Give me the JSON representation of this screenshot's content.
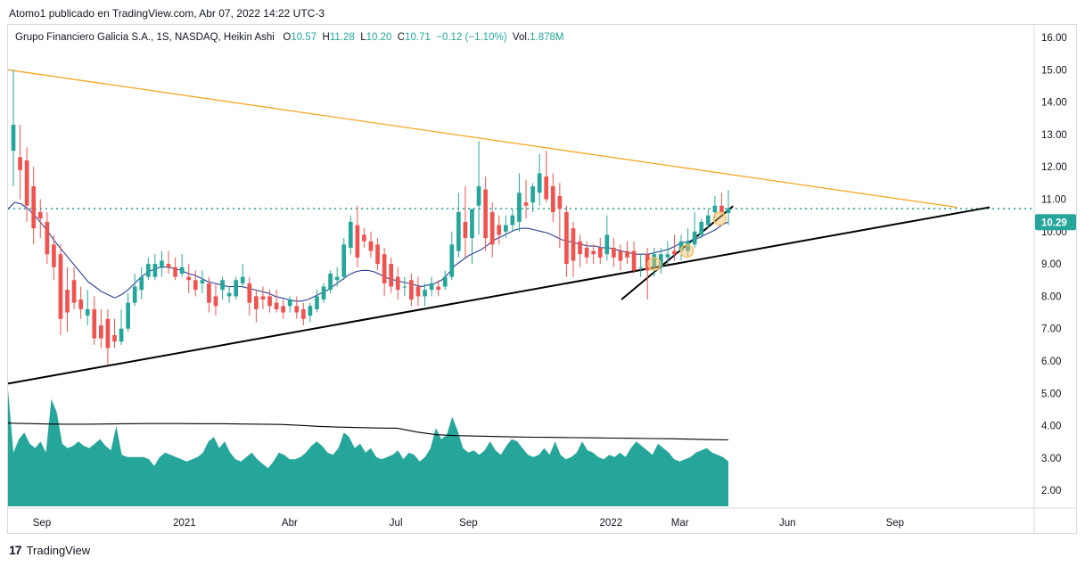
{
  "caption": "Atomo1 publicado en TradingView.com, Abr 07, 2022 14:22 UTC-3",
  "legend": {
    "symbol": "Grupo Financiero Galicia S.A., 1S, NASDAQ, Heikin Ashi",
    "o_label": "O",
    "o_value": "10.57",
    "h_label": "H",
    "h_value": "11.28",
    "l_label": "L",
    "l_value": "10.20",
    "c_label": "C",
    "c_value": "10.71",
    "change": "−0.12 (−1.10%)",
    "vol_label": "Vol.",
    "vol_value": "1.878M"
  },
  "footer": {
    "logo_mark": "17",
    "brand": "TradingView"
  },
  "colors": {
    "up": "#26a69a",
    "down": "#ef5350",
    "ma": "#2a3f8f",
    "resistance": "#f5a623",
    "support": "#000000",
    "dotted": "#26a69a",
    "volume": "#26a69a",
    "vol_ma": "#000000",
    "badge": "#26a69a",
    "marker": "#f5c26b"
  },
  "chart_data": {
    "type": "candlestick",
    "title": "Grupo Financiero Galicia S.A., 1S, NASDAQ, Heikin Ashi",
    "y_axis": {
      "ticks": [
        "16.00",
        "15.00",
        "14.00",
        "13.00",
        "12.00",
        "11.00",
        "10.00",
        "9.00",
        "8.00",
        "7.00",
        "6.00",
        "5.00",
        "4.00",
        "3.00",
        "2.00"
      ],
      "ylim": [
        1.0,
        16.5
      ],
      "scale": "linear",
      "position": "right"
    },
    "x_axis": {
      "ticks": [
        "Sep",
        "2021",
        "Abr",
        "Jul",
        "Sep",
        "2022",
        "Mar",
        "Jun",
        "Sep"
      ],
      "tick_dates": [
        "2020-09-01",
        "2021-01-01",
        "2021-04-01",
        "2021-07-01",
        "2021-09-01",
        "2022-01-01",
        "2022-03-01",
        "2022-06-01",
        "2022-09-01"
      ],
      "range": [
        "2020-08-03",
        "2022-11-21"
      ]
    },
    "last_price": "10.29",
    "current_level": 10.71,
    "candles": [
      {
        "o": 12.5,
        "h": 15.0,
        "l": 11.4,
        "c": 13.3
      },
      {
        "o": 12.3,
        "h": 13.3,
        "l": 11.0,
        "c": 11.9
      },
      {
        "o": 12.2,
        "h": 12.6,
        "l": 10.3,
        "c": 10.8
      },
      {
        "o": 11.4,
        "h": 12.0,
        "l": 9.6,
        "c": 10.1
      },
      {
        "o": 10.6,
        "h": 11.0,
        "l": 9.8,
        "c": 10.4
      },
      {
        "o": 10.3,
        "h": 10.6,
        "l": 9.0,
        "c": 9.3
      },
      {
        "o": 9.6,
        "h": 9.9,
        "l": 8.5,
        "c": 8.9
      },
      {
        "o": 9.3,
        "h": 9.6,
        "l": 6.8,
        "c": 7.3
      },
      {
        "o": 8.2,
        "h": 8.9,
        "l": 6.9,
        "c": 7.5
      },
      {
        "o": 8.5,
        "h": 8.9,
        "l": 7.6,
        "c": 7.8
      },
      {
        "o": 7.9,
        "h": 8.3,
        "l": 7.3,
        "c": 7.6
      },
      {
        "o": 7.4,
        "h": 8.2,
        "l": 7.1,
        "c": 7.6
      },
      {
        "o": 7.6,
        "h": 8.0,
        "l": 6.5,
        "c": 6.7
      },
      {
        "o": 7.1,
        "h": 7.6,
        "l": 6.4,
        "c": 6.7
      },
      {
        "o": 7.3,
        "h": 7.6,
        "l": 5.9,
        "c": 6.4
      },
      {
        "o": 6.8,
        "h": 7.3,
        "l": 6.4,
        "c": 6.6
      },
      {
        "o": 6.6,
        "h": 7.6,
        "l": 6.5,
        "c": 7.0
      },
      {
        "o": 7.0,
        "h": 8.1,
        "l": 6.9,
        "c": 7.8
      },
      {
        "o": 7.8,
        "h": 8.7,
        "l": 7.7,
        "c": 8.3
      },
      {
        "o": 8.2,
        "h": 8.9,
        "l": 7.9,
        "c": 8.6
      },
      {
        "o": 8.6,
        "h": 9.2,
        "l": 8.5,
        "c": 9.0
      },
      {
        "o": 8.6,
        "h": 9.3,
        "l": 8.5,
        "c": 9.0
      },
      {
        "o": 8.9,
        "h": 9.4,
        "l": 8.6,
        "c": 9.1
      },
      {
        "o": 9.0,
        "h": 9.4,
        "l": 8.7,
        "c": 8.9
      },
      {
        "o": 8.9,
        "h": 9.2,
        "l": 8.5,
        "c": 8.6
      },
      {
        "o": 8.7,
        "h": 9.3,
        "l": 8.6,
        "c": 8.9
      },
      {
        "o": 8.6,
        "h": 9.0,
        "l": 8.1,
        "c": 8.5
      },
      {
        "o": 8.5,
        "h": 8.8,
        "l": 8.0,
        "c": 8.2
      },
      {
        "o": 8.4,
        "h": 8.8,
        "l": 8.1,
        "c": 8.5
      },
      {
        "o": 8.4,
        "h": 8.6,
        "l": 7.5,
        "c": 7.8
      },
      {
        "o": 8.0,
        "h": 8.4,
        "l": 7.4,
        "c": 7.7
      },
      {
        "o": 8.2,
        "h": 8.6,
        "l": 7.9,
        "c": 8.5
      },
      {
        "o": 8.0,
        "h": 8.3,
        "l": 7.8,
        "c": 8.1
      },
      {
        "o": 8.0,
        "h": 8.6,
        "l": 7.9,
        "c": 8.5
      },
      {
        "o": 8.4,
        "h": 9.0,
        "l": 8.3,
        "c": 8.6
      },
      {
        "o": 8.4,
        "h": 8.6,
        "l": 7.4,
        "c": 7.8
      },
      {
        "o": 8.0,
        "h": 8.2,
        "l": 7.2,
        "c": 7.6
      },
      {
        "o": 8.0,
        "h": 8.3,
        "l": 7.6,
        "c": 7.9
      },
      {
        "o": 8.0,
        "h": 8.2,
        "l": 7.5,
        "c": 7.7
      },
      {
        "o": 7.8,
        "h": 8.2,
        "l": 7.5,
        "c": 7.6
      },
      {
        "o": 7.7,
        "h": 7.9,
        "l": 7.3,
        "c": 7.5
      },
      {
        "o": 7.7,
        "h": 8.0,
        "l": 7.5,
        "c": 7.9
      },
      {
        "o": 7.7,
        "h": 8.0,
        "l": 7.3,
        "c": 7.5
      },
      {
        "o": 7.6,
        "h": 7.8,
        "l": 7.1,
        "c": 7.3
      },
      {
        "o": 7.4,
        "h": 7.8,
        "l": 7.2,
        "c": 7.7
      },
      {
        "o": 7.6,
        "h": 8.2,
        "l": 7.5,
        "c": 8.0
      },
      {
        "o": 7.9,
        "h": 8.4,
        "l": 7.8,
        "c": 8.3
      },
      {
        "o": 8.2,
        "h": 8.8,
        "l": 8.1,
        "c": 8.7
      },
      {
        "o": 8.5,
        "h": 8.9,
        "l": 8.3,
        "c": 8.6
      },
      {
        "o": 8.6,
        "h": 9.8,
        "l": 8.5,
        "c": 9.6
      },
      {
        "o": 9.5,
        "h": 10.5,
        "l": 9.3,
        "c": 10.3
      },
      {
        "o": 10.2,
        "h": 10.8,
        "l": 8.9,
        "c": 9.2
      },
      {
        "o": 9.9,
        "h": 10.1,
        "l": 9.5,
        "c": 9.7
      },
      {
        "o": 9.7,
        "h": 10.0,
        "l": 9.2,
        "c": 9.4
      },
      {
        "o": 9.6,
        "h": 9.8,
        "l": 8.8,
        "c": 9.0
      },
      {
        "o": 9.3,
        "h": 9.5,
        "l": 8.0,
        "c": 8.4
      },
      {
        "o": 9.0,
        "h": 9.2,
        "l": 8.1,
        "c": 8.3
      },
      {
        "o": 8.6,
        "h": 8.9,
        "l": 7.9,
        "c": 8.2
      },
      {
        "o": 8.3,
        "h": 8.6,
        "l": 8.0,
        "c": 8.3
      },
      {
        "o": 8.5,
        "h": 8.7,
        "l": 7.7,
        "c": 7.9
      },
      {
        "o": 8.3,
        "h": 8.6,
        "l": 7.7,
        "c": 8.0
      },
      {
        "o": 8.0,
        "h": 8.4,
        "l": 7.7,
        "c": 8.2
      },
      {
        "o": 8.2,
        "h": 8.6,
        "l": 8.0,
        "c": 8.4
      },
      {
        "o": 8.3,
        "h": 8.5,
        "l": 8.0,
        "c": 8.2
      },
      {
        "o": 8.3,
        "h": 8.8,
        "l": 8.2,
        "c": 8.6
      },
      {
        "o": 8.6,
        "h": 10.0,
        "l": 8.5,
        "c": 9.6
      },
      {
        "o": 9.4,
        "h": 11.2,
        "l": 9.2,
        "c": 10.6
      },
      {
        "o": 10.3,
        "h": 11.4,
        "l": 9.2,
        "c": 9.8
      },
      {
        "o": 9.8,
        "h": 10.7,
        "l": 9.0,
        "c": 10.7
      },
      {
        "o": 10.8,
        "h": 12.8,
        "l": 9.9,
        "c": 11.4
      },
      {
        "o": 11.3,
        "h": 11.7,
        "l": 9.4,
        "c": 9.8
      },
      {
        "o": 10.6,
        "h": 10.9,
        "l": 9.2,
        "c": 9.6
      },
      {
        "o": 10.2,
        "h": 10.5,
        "l": 9.6,
        "c": 9.9
      },
      {
        "o": 10.0,
        "h": 10.5,
        "l": 9.8,
        "c": 10.2
      },
      {
        "o": 10.2,
        "h": 10.7,
        "l": 10.0,
        "c": 10.5
      },
      {
        "o": 10.3,
        "h": 11.8,
        "l": 10.0,
        "c": 11.2
      },
      {
        "o": 10.9,
        "h": 11.6,
        "l": 10.4,
        "c": 10.8
      },
      {
        "o": 10.9,
        "h": 11.5,
        "l": 10.6,
        "c": 11.4
      },
      {
        "o": 11.2,
        "h": 12.4,
        "l": 10.8,
        "c": 11.8
      },
      {
        "o": 11.7,
        "h": 12.5,
        "l": 10.9,
        "c": 11.0
      },
      {
        "o": 11.4,
        "h": 11.8,
        "l": 10.3,
        "c": 10.6
      },
      {
        "o": 11.1,
        "h": 11.5,
        "l": 9.5,
        "c": 10.7
      },
      {
        "o": 10.6,
        "h": 10.8,
        "l": 8.6,
        "c": 9.0
      },
      {
        "o": 10.1,
        "h": 10.3,
        "l": 8.6,
        "c": 9.1
      },
      {
        "o": 9.7,
        "h": 9.9,
        "l": 8.9,
        "c": 9.3
      },
      {
        "o": 9.5,
        "h": 9.7,
        "l": 9.0,
        "c": 9.2
      },
      {
        "o": 9.4,
        "h": 9.6,
        "l": 9.0,
        "c": 9.3
      },
      {
        "o": 9.5,
        "h": 9.8,
        "l": 9.0,
        "c": 9.2
      },
      {
        "o": 9.3,
        "h": 10.5,
        "l": 9.1,
        "c": 9.9
      },
      {
        "o": 9.5,
        "h": 9.8,
        "l": 8.9,
        "c": 9.2
      },
      {
        "o": 9.4,
        "h": 9.6,
        "l": 8.8,
        "c": 9.1
      },
      {
        "o": 9.4,
        "h": 9.7,
        "l": 9.0,
        "c": 9.2
      },
      {
        "o": 9.4,
        "h": 9.7,
        "l": 8.7,
        "c": 8.8
      },
      {
        "o": 8.9,
        "h": 9.3,
        "l": 8.6,
        "c": 8.9
      },
      {
        "o": 9.3,
        "h": 9.5,
        "l": 7.9,
        "c": 8.8
      },
      {
        "o": 8.9,
        "h": 9.5,
        "l": 8.6,
        "c": 9.3
      },
      {
        "o": 8.9,
        "h": 9.5,
        "l": 8.7,
        "c": 9.3
      },
      {
        "o": 9.2,
        "h": 9.7,
        "l": 9.0,
        "c": 9.3
      },
      {
        "o": 9.4,
        "h": 9.9,
        "l": 9.1,
        "c": 9.3
      },
      {
        "o": 9.4,
        "h": 9.9,
        "l": 9.1,
        "c": 9.7
      },
      {
        "o": 9.4,
        "h": 10.1,
        "l": 9.2,
        "c": 9.7
      },
      {
        "o": 9.6,
        "h": 10.6,
        "l": 9.5,
        "c": 10.0
      },
      {
        "o": 9.9,
        "h": 10.4,
        "l": 9.8,
        "c": 10.3
      },
      {
        "o": 10.2,
        "h": 10.7,
        "l": 10.1,
        "c": 10.5
      },
      {
        "o": 10.6,
        "h": 11.1,
        "l": 10.4,
        "c": 10.8
      },
      {
        "o": 10.8,
        "h": 11.2,
        "l": 10.5,
        "c": 10.6
      },
      {
        "o": 10.57,
        "h": 11.28,
        "l": 10.2,
        "c": 10.71
      }
    ],
    "moving_average": [
      10.7,
      10.9,
      10.85,
      10.7,
      10.5,
      10.25,
      10.0,
      9.7,
      9.45,
      9.2,
      8.95,
      8.7,
      8.45,
      8.3,
      8.15,
      8.05,
      7.95,
      8.05,
      8.2,
      8.4,
      8.6,
      8.75,
      8.85,
      8.9,
      8.9,
      8.85,
      8.8,
      8.7,
      8.65,
      8.55,
      8.45,
      8.4,
      8.35,
      8.3,
      8.3,
      8.3,
      8.25,
      8.2,
      8.15,
      8.1,
      8.0,
      7.95,
      7.9,
      7.85,
      7.85,
      7.9,
      8.0,
      8.1,
      8.2,
      8.35,
      8.5,
      8.65,
      8.75,
      8.8,
      8.8,
      8.75,
      8.65,
      8.55,
      8.5,
      8.45,
      8.4,
      8.35,
      8.3,
      8.35,
      8.4,
      8.5,
      8.7,
      8.95,
      9.1,
      9.25,
      9.35,
      9.45,
      9.6,
      9.75,
      9.85,
      9.95,
      10.05,
      10.1,
      10.1,
      10.05,
      10.0,
      9.95,
      9.85,
      9.75,
      9.7,
      9.65,
      9.6,
      9.55,
      9.55,
      9.5,
      9.5,
      9.45,
      9.4,
      9.35,
      9.3,
      9.3,
      9.3,
      9.35,
      9.4,
      9.45,
      9.55,
      9.65,
      9.7,
      9.75,
      9.85,
      9.95,
      10.05,
      10.2,
      10.3
    ],
    "volume": [
      5.2,
      2.4,
      3.0,
      3.3,
      2.8,
      2.6,
      2.9,
      2.4,
      4.8,
      4.2,
      2.8,
      2.6,
      2.7,
      2.9,
      2.7,
      2.6,
      2.8,
      3.0,
      2.7,
      2.5,
      3.6,
      2.3,
      2.2,
      2.2,
      2.2,
      2.2,
      2.1,
      1.8,
      2.2,
      2.4,
      2.3,
      2.2,
      2.1,
      2.0,
      2.1,
      2.2,
      2.4,
      2.9,
      3.1,
      2.6,
      2.9,
      2.4,
      2.1,
      2.0,
      2.2,
      2.4,
      2.1,
      1.9,
      1.7,
      2.0,
      2.4,
      2.3,
      2.1,
      2.1,
      2.2,
      2.4,
      2.7,
      2.9,
      2.7,
      2.4,
      2.3,
      2.6,
      3.3,
      3.1,
      2.6,
      2.8,
      2.4,
      2.6,
      2.2,
      2.1,
      2.2,
      2.3,
      2.5,
      2.1,
      2.4,
      2.3,
      2.0,
      2.2,
      2.6,
      3.5,
      3.0,
      3.2,
      4.0,
      3.4,
      2.6,
      2.4,
      2.5,
      2.3,
      2.5,
      2.9,
      2.5,
      2.3,
      2.7,
      3.0,
      2.9,
      2.6,
      2.3,
      2.2,
      2.3,
      2.6,
      2.3,
      2.9,
      2.3,
      2.1,
      2.2,
      2.4,
      2.9,
      2.5,
      2.4,
      2.2,
      2.1,
      2.3,
      2.2,
      2.4,
      2.2,
      2.6,
      2.9,
      2.7,
      2.5,
      2.3,
      2.8,
      2.6,
      2.4,
      2.1,
      2.0,
      2.1,
      2.2,
      2.4,
      2.5,
      2.6,
      2.4,
      2.3,
      2.2,
      2.0
    ],
    "volume_ma": [
      3.6,
      3.58,
      3.56,
      3.55,
      3.55,
      3.56,
      3.57,
      3.58,
      3.58,
      3.58,
      3.57,
      3.57,
      3.56,
      3.55,
      3.54,
      3.5,
      3.45,
      3.42,
      3.4,
      3.38,
      3.37,
      3.2,
      3.08,
      3.04,
      3.02,
      3.0,
      2.98,
      2.97,
      2.96,
      2.95,
      2.94,
      2.93,
      2.92,
      2.91,
      2.9,
      2.88,
      2.86,
      2.85
    ],
    "trendlines": {
      "resistance": {
        "from": {
          "date": "2020-08-03",
          "price": 15.0
        },
        "to": {
          "date": "2022-10-24",
          "price": 10.75
        }
      },
      "long_support": {
        "from": {
          "date": "2020-08-03",
          "price": 5.3
        },
        "to": {
          "date": "2022-11-21",
          "price": 10.75
        }
      },
      "short_support": {
        "from": {
          "date": "2022-01-10",
          "price": 7.9
        },
        "to": {
          "date": "2022-04-04",
          "price": 10.4
        }
      }
    },
    "markers": [
      {
        "date": "2022-02-07",
        "price": 9.0
      },
      {
        "date": "2022-03-07",
        "price": 9.4
      },
      {
        "date": "2022-04-04",
        "price": 10.4
      }
    ]
  }
}
